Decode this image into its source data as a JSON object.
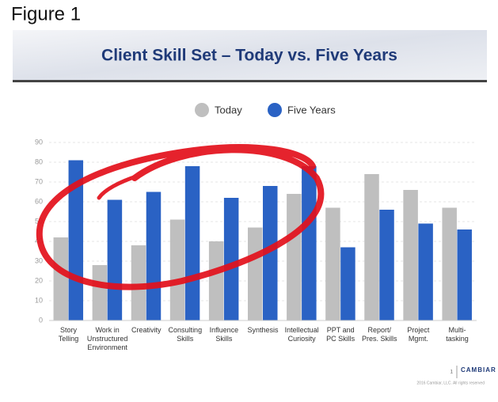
{
  "figure_label": "Figure 1",
  "chart_data": {
    "type": "bar",
    "title": "Client Skill Set – Today vs. Five Years",
    "categories": [
      "Story\nTelling",
      "Work in\nUnstructured\nEnvironment",
      "Creativity",
      "Consulting\nSkills",
      "Influence\nSkills",
      "Synthesis",
      "Intellectual\nCuriosity",
      "PPT and\nPC Skills",
      "Report/\nPres. Skills",
      "Project\nMgmt.",
      "Multi-\ntasking"
    ],
    "series": [
      {
        "name": "Today",
        "color": "#bfbfbf",
        "values": [
          42,
          28,
          38,
          51,
          40,
          47,
          64,
          57,
          74,
          66,
          57
        ]
      },
      {
        "name": "Five Years",
        "color": "#2a62c4",
        "values": [
          81,
          61,
          65,
          78,
          62,
          68,
          78,
          37,
          56,
          49,
          46
        ]
      }
    ],
    "ylim": [
      0,
      90
    ],
    "yticks": [
      0,
      10,
      20,
      30,
      40,
      50,
      60,
      70,
      80,
      90
    ],
    "grid": true,
    "legend": "top"
  },
  "footer": {
    "page": "1",
    "logo": "CAMBIAR",
    "copyright": "2016 Cambiar, LLC. All rights reserved"
  }
}
